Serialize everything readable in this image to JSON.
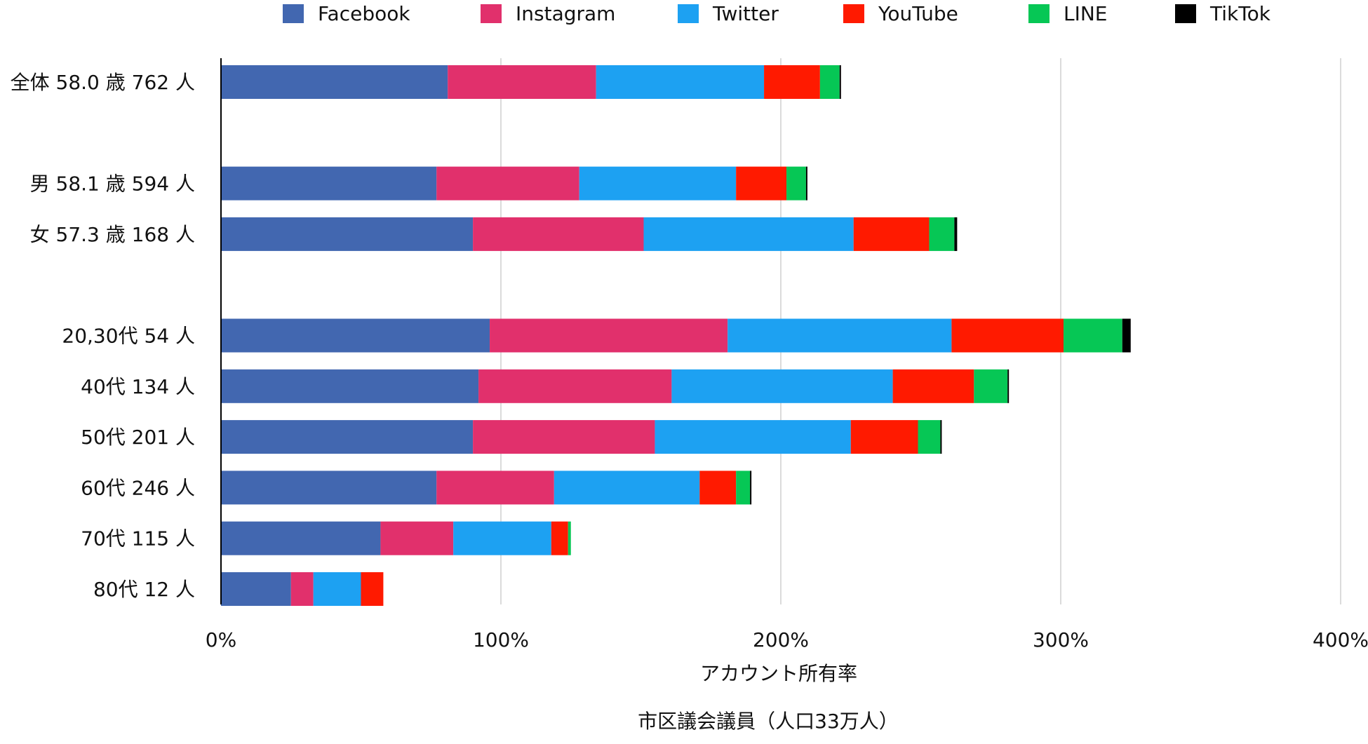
{
  "chart_data": {
    "type": "bar",
    "orientation": "horizontal",
    "stacked": true,
    "categories": [
      "全体 58.0 歳 762 人",
      "",
      "男 58.1 歳 594 人",
      "女 57.3 歳 168 人",
      "",
      "20,30代 54 人",
      "40代 134 人",
      "50代 201 人",
      "60代 246 人",
      "70代 115 人",
      "80代 12 人"
    ],
    "series": [
      {
        "name": "Facebook",
        "color": "#4267b0",
        "values": [
          81,
          null,
          77,
          90,
          null,
          96,
          92,
          90,
          77,
          57,
          25
        ]
      },
      {
        "name": "Instagram",
        "color": "#e1306c",
        "values": [
          53,
          null,
          51,
          61,
          null,
          85,
          69,
          65,
          42,
          26,
          8
        ]
      },
      {
        "name": "Twitter",
        "color": "#1da1f2",
        "values": [
          60,
          null,
          56,
          75,
          null,
          80,
          79,
          70,
          52,
          35,
          17
        ]
      },
      {
        "name": "YouTube",
        "color": "#ff1a00",
        "values": [
          20,
          null,
          18,
          27,
          null,
          40,
          29,
          24,
          13,
          6,
          8
        ]
      },
      {
        "name": "LINE",
        "color": "#06c755",
        "values": [
          7,
          null,
          7,
          9,
          null,
          21,
          12,
          8,
          5,
          1,
          0
        ]
      },
      {
        "name": "TikTok",
        "color": "#000000",
        "values": [
          0.5,
          null,
          0.5,
          1,
          null,
          3,
          0.5,
          0.5,
          0.5,
          0,
          0
        ]
      }
    ],
    "xlim": [
      0,
      400
    ],
    "xticks": [
      0,
      100,
      200,
      300,
      400
    ],
    "xtick_labels": [
      "0%",
      "100%",
      "200%",
      "300%",
      "400%"
    ],
    "xlabel": "アカウント所有率",
    "title": "市区議会議員（人口33万人）",
    "grid": true,
    "legend": "top"
  }
}
